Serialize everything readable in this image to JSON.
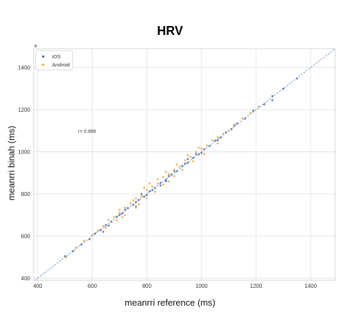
{
  "chart_data": {
    "type": "scatter",
    "title": "HRV",
    "panel_label": "a",
    "xlabel": "meanrri reference (ms)",
    "ylabel": "meanrri binah (ms)",
    "xlim": [
      385,
      1490
    ],
    "ylim": [
      390,
      1490
    ],
    "x_ticks": [
      400,
      600,
      800,
      1000,
      1200,
      1400
    ],
    "y_ticks": [
      400,
      600,
      800,
      1000,
      1200,
      1400
    ],
    "grid": true,
    "legend_position": "top-left",
    "annotation": "r= 0.999",
    "identity_line": true,
    "series": [
      {
        "name": "iOS",
        "color": "#4c72b0",
        "points": [
          [
            500,
            505
          ],
          [
            530,
            528
          ],
          [
            560,
            560
          ],
          [
            590,
            585
          ],
          [
            610,
            612
          ],
          [
            630,
            628
          ],
          [
            650,
            652
          ],
          [
            670,
            668
          ],
          [
            690,
            692
          ],
          [
            710,
            708
          ],
          [
            730,
            733
          ],
          [
            750,
            748
          ],
          [
            770,
            772
          ],
          [
            790,
            788
          ],
          [
            810,
            812
          ],
          [
            830,
            828
          ],
          [
            850,
            853
          ],
          [
            870,
            868
          ],
          [
            890,
            892
          ],
          [
            910,
            908
          ],
          [
            930,
            933
          ],
          [
            950,
            948
          ],
          [
            970,
            972
          ],
          [
            990,
            988
          ],
          [
            1010,
            1012
          ],
          [
            1030,
            1028
          ],
          [
            1050,
            1053
          ],
          [
            1070,
            1068
          ],
          [
            1090,
            1092
          ],
          [
            1110,
            1108
          ],
          [
            1130,
            1135
          ],
          [
            1160,
            1158
          ],
          [
            1190,
            1195
          ],
          [
            1230,
            1225
          ],
          [
            1260,
            1265
          ],
          [
            1300,
            1300
          ],
          [
            1350,
            1348
          ],
          [
            1260,
            1245
          ],
          [
            700,
            700
          ],
          [
            760,
            762
          ],
          [
            820,
            818
          ],
          [
            880,
            885
          ],
          [
            940,
            945
          ],
          [
            980,
            990
          ],
          [
            1060,
            1055
          ],
          [
            660,
            650
          ],
          [
            720,
            725
          ],
          [
            800,
            795
          ],
          [
            900,
            910
          ],
          [
            1000,
            995
          ],
          [
            640,
            620
          ],
          [
            760,
            740
          ],
          [
            870,
            860
          ],
          [
            780,
            800
          ],
          [
            850,
            840
          ],
          [
            950,
            965
          ],
          [
            1120,
            1125
          ]
        ]
      },
      {
        "name": "Android",
        "color": "#f5a34a",
        "points": [
          [
            505,
            500
          ],
          [
            540,
            545
          ],
          [
            570,
            578
          ],
          [
            600,
            605
          ],
          [
            620,
            625
          ],
          [
            640,
            648
          ],
          [
            660,
            675
          ],
          [
            680,
            690
          ],
          [
            700,
            710
          ],
          [
            720,
            735
          ],
          [
            740,
            755
          ],
          [
            760,
            780
          ],
          [
            780,
            790
          ],
          [
            800,
            820
          ],
          [
            820,
            835
          ],
          [
            840,
            850
          ],
          [
            860,
            880
          ],
          [
            880,
            895
          ],
          [
            900,
            915
          ],
          [
            920,
            930
          ],
          [
            940,
            960
          ],
          [
            960,
            975
          ],
          [
            980,
            1000
          ],
          [
            1000,
            1015
          ],
          [
            1020,
            1030
          ],
          [
            1040,
            1055
          ],
          [
            1060,
            1070
          ],
          [
            1080,
            1085
          ],
          [
            1100,
            1100
          ],
          [
            1120,
            1130
          ],
          [
            1150,
            1160
          ],
          [
            1180,
            1185
          ],
          [
            1210,
            1215
          ],
          [
            650,
            640
          ],
          [
            690,
            675
          ],
          [
            710,
            690
          ],
          [
            770,
            750
          ],
          [
            800,
            780
          ],
          [
            830,
            810
          ],
          [
            860,
            845
          ],
          [
            900,
            885
          ],
          [
            930,
            915
          ],
          [
            970,
            955
          ],
          [
            1010,
            990
          ],
          [
            700,
            725
          ],
          [
            750,
            770
          ],
          [
            790,
            830
          ],
          [
            810,
            850
          ],
          [
            840,
            870
          ],
          [
            870,
            905
          ],
          [
            910,
            940
          ],
          [
            950,
            985
          ],
          [
            990,
            1020
          ],
          [
            720,
            700
          ],
          [
            760,
            735
          ],
          [
            880,
            860
          ],
          [
            1060,
            1040
          ]
        ]
      }
    ]
  },
  "colors": {
    "identity_line": "#4c72b0",
    "grid": "#dddddd",
    "frame": "#cccccc"
  }
}
